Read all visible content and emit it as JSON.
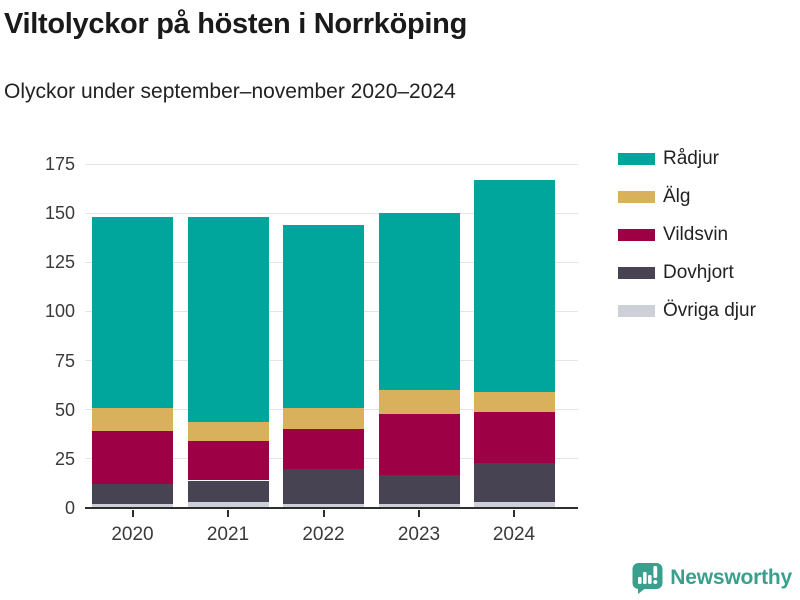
{
  "title": "Viltolyckor på hösten i Norrköping",
  "subtitle": "Olyckor under september–november 2020–2024",
  "brand": {
    "name": "Newsworthy",
    "color": "#3aa08e"
  },
  "axis_colors": {
    "grid": "#e4e4e6",
    "axis": "#2e2e2e",
    "tick_label": "#3a3a3a"
  },
  "chart_data": {
    "type": "bar",
    "stacked": true,
    "title": "Viltolyckor på hösten i Norrköping",
    "subtitle": "Olyckor under september–november 2020–2024",
    "categories": [
      "2020",
      "2021",
      "2022",
      "2023",
      "2024"
    ],
    "series": [
      {
        "name": "Rådjur",
        "color": "#00a69b",
        "values": [
          97,
          104,
          93,
          90,
          108
        ]
      },
      {
        "name": "Älg",
        "color": "#d9b05c",
        "values": [
          12,
          10,
          11,
          12,
          10
        ]
      },
      {
        "name": "Vildsvin",
        "color": "#9e0045",
        "values": [
          27,
          20,
          20,
          31,
          26
        ]
      },
      {
        "name": "Dovhjort",
        "color": "#474352",
        "values": [
          10,
          11,
          18,
          15,
          20
        ]
      },
      {
        "name": "Övriga djur",
        "color": "#cdd0d6",
        "values": [
          2,
          3,
          2,
          2,
          3
        ]
      }
    ],
    "totals": [
      148,
      148,
      144,
      150,
      167
    ],
    "stack_order_bottom_to_top": [
      "Övriga djur",
      "Dovhjort",
      "Vildsvin",
      "Älg",
      "Rådjur"
    ],
    "xlabel": "",
    "ylabel": "",
    "yticks": [
      0,
      25,
      50,
      75,
      100,
      125,
      150,
      175
    ],
    "ylim": [
      0,
      175
    ],
    "grid": true,
    "legend_position": "top-right"
  }
}
